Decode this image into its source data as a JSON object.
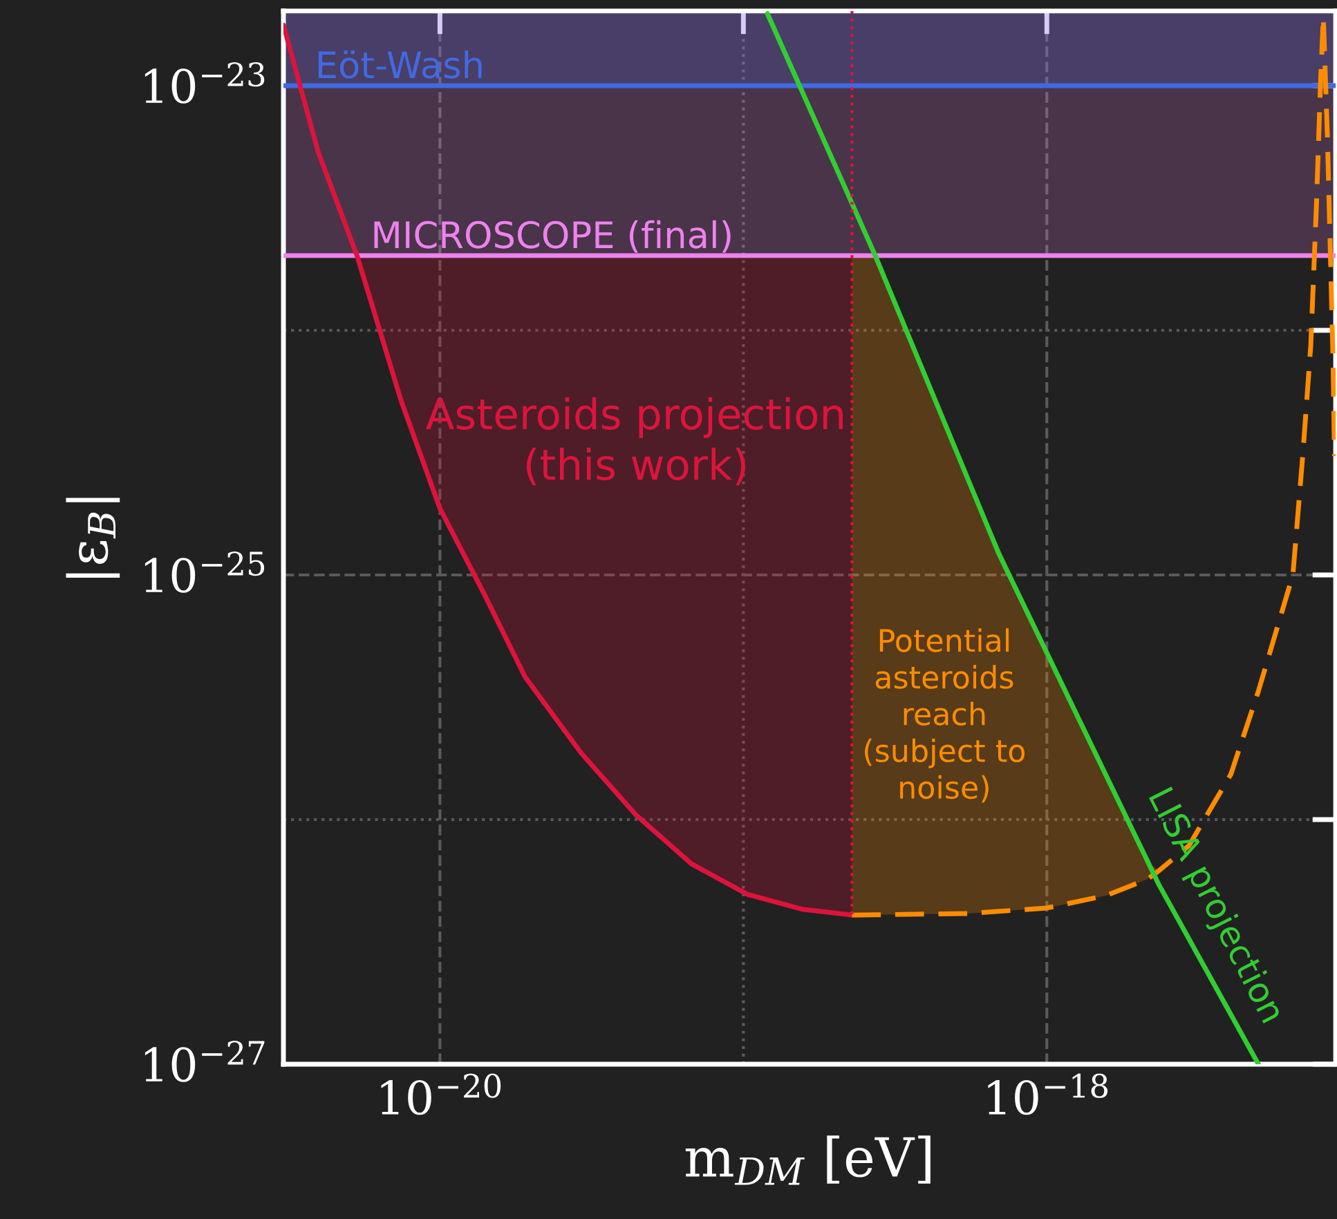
{
  "chart_data": {
    "type": "line",
    "xlabel": "m$_{DM}$ [eV]",
    "ylabel": "|ε$_{B}$|",
    "log": "xy",
    "grid": true,
    "legend": false,
    "xlim": [
      3.05e-21,
      8.95e-18
    ],
    "ylim": [
      1e-27,
      2.02e-23
    ],
    "xticks": [
      {
        "value": 1e-20,
        "label": "10$^{−20}$"
      },
      {
        "value": 1e-19,
        "label": null
      },
      {
        "value": 1e-18,
        "label": "10$^{−18}$"
      }
    ],
    "yticks": [
      {
        "value": 1e-27,
        "label": "10$^{−27}$"
      },
      {
        "value": 1e-26,
        "label": null
      },
      {
        "value": 1e-25,
        "label": "10$^{−25}$"
      },
      {
        "value": 1e-24,
        "label": null
      },
      {
        "value": 1e-23,
        "label": "10$^{−23}$"
      }
    ],
    "bands": [
      {
        "axis": "y",
        "from": 2.02e-24,
        "to": 2.02e-23,
        "color": "#ee82ee"
      },
      {
        "axis": "y",
        "from": 1e-23,
        "to": 2.02e-23,
        "color": "#4169e1"
      }
    ],
    "ref_lines": [
      {
        "axis": "y",
        "value": 1e-23,
        "label": "Eöt-Wash",
        "color": "#4169e1",
        "line_style": "solid"
      },
      {
        "axis": "y",
        "value": 2.02e-24,
        "label": "MICROSCOPE (final)",
        "color": "#ee82ee",
        "line_style": "solid"
      }
    ],
    "series": [
      {
        "name": "Asteroids projection\n(this work)",
        "color": "#dc143c",
        "line_style": "solid",
        "x": [
          3.05e-21,
          3.97e-21,
          5.33e-21,
          7.45e-21,
          1e-20,
          1.4e-20,
          1.91e-20,
          2.92e-20,
          4.44e-20,
          6.75e-20,
          1.03e-19,
          1.56e-19,
          2.28e-19
        ],
        "values": [
          1.77e-23,
          5.36e-24,
          2.02e-24,
          5.15e-25,
          1.87e-25,
          8.34e-26,
          3.82e-26,
          1.87e-26,
          1.04e-26,
          6.59e-27,
          4.95e-27,
          4.3e-27,
          4.07e-27
        ],
        "lower": [
          null,
          null,
          2.02e-24,
          5.15e-25,
          1.87e-25,
          8.34e-26,
          3.82e-26,
          1.87e-26,
          1.04e-26,
          6.59e-27,
          4.95e-27,
          4.3e-27,
          4.07e-27
        ],
        "upper": [
          null,
          null,
          2.02e-24,
          2.02e-24,
          2.02e-24,
          2.02e-24,
          2.02e-24,
          2.02e-24,
          2.02e-24,
          2.02e-24,
          2.02e-24,
          2.02e-24,
          2.02e-24
        ]
      },
      {
        "name": "Potential\nasteroids\nreach\n(subject to\nnoise)",
        "color": "#ff8c00",
        "line_style": "dashed",
        "x": [
          2.28e-19,
          2.72e-19,
          5.5e-19,
          1e-18,
          1.57e-18,
          2.15e-18,
          2.34e-18,
          2.94e-18,
          4.04e-18,
          4.98e-18,
          5.82e-18,
          6.47e-18,
          6.97e-18,
          7.41e-18,
          7.73e-18,
          7.98e-18,
          8.15e-18,
          8.41e-18,
          8.59e-18,
          8.77e-18,
          8.87e-18
        ],
        "values": [
          4.07e-27,
          4.08e-27,
          4.13e-27,
          4.35e-27,
          4.89e-27,
          5.71e-27,
          6.18e-27,
          7.82e-27,
          1.53e-26,
          3.35e-26,
          6.43e-26,
          1e-25,
          3.06e-25,
          8.67e-25,
          3.18e-24,
          1.03e-23,
          1.91e-23,
          6.1e-24,
          2.15e-24,
          7.6e-25,
          3.06e-25
        ],
        "lower": [
          4.07e-27,
          4.08e-27,
          4.13e-27,
          4.35e-27,
          4.89e-27,
          5.71e-27,
          6.18e-27,
          null,
          null,
          null,
          null,
          null,
          null,
          null,
          null,
          null,
          null,
          null,
          null,
          null,
          null
        ],
        "upper": [
          2.02e-24,
          2.02e-24,
          2.47e-25,
          4.81e-26,
          1.51e-26,
          6.7e-27,
          6.18e-27,
          null,
          null,
          null,
          null,
          null,
          null,
          null,
          null,
          null,
          null,
          null,
          null,
          null,
          null
        ]
      },
      {
        "name": "LISA projection",
        "color": "#32cd32",
        "line_style": "solid",
        "x": [
          1.2e-19,
          2.72e-19,
          6.93e-19,
          2.34e-18,
          4.98e-18
        ],
        "values": [
          1.97e-23,
          2.02e-24,
          1.23e-25,
          5.42e-27,
          1e-27
        ]
      },
      {
        "color": "#dc143c",
        "line_style": "dotted",
        "x": [
          2.28e-19,
          2.28e-19
        ],
        "values": [
          2.02e-23,
          4.07e-27
        ]
      }
    ]
  }
}
